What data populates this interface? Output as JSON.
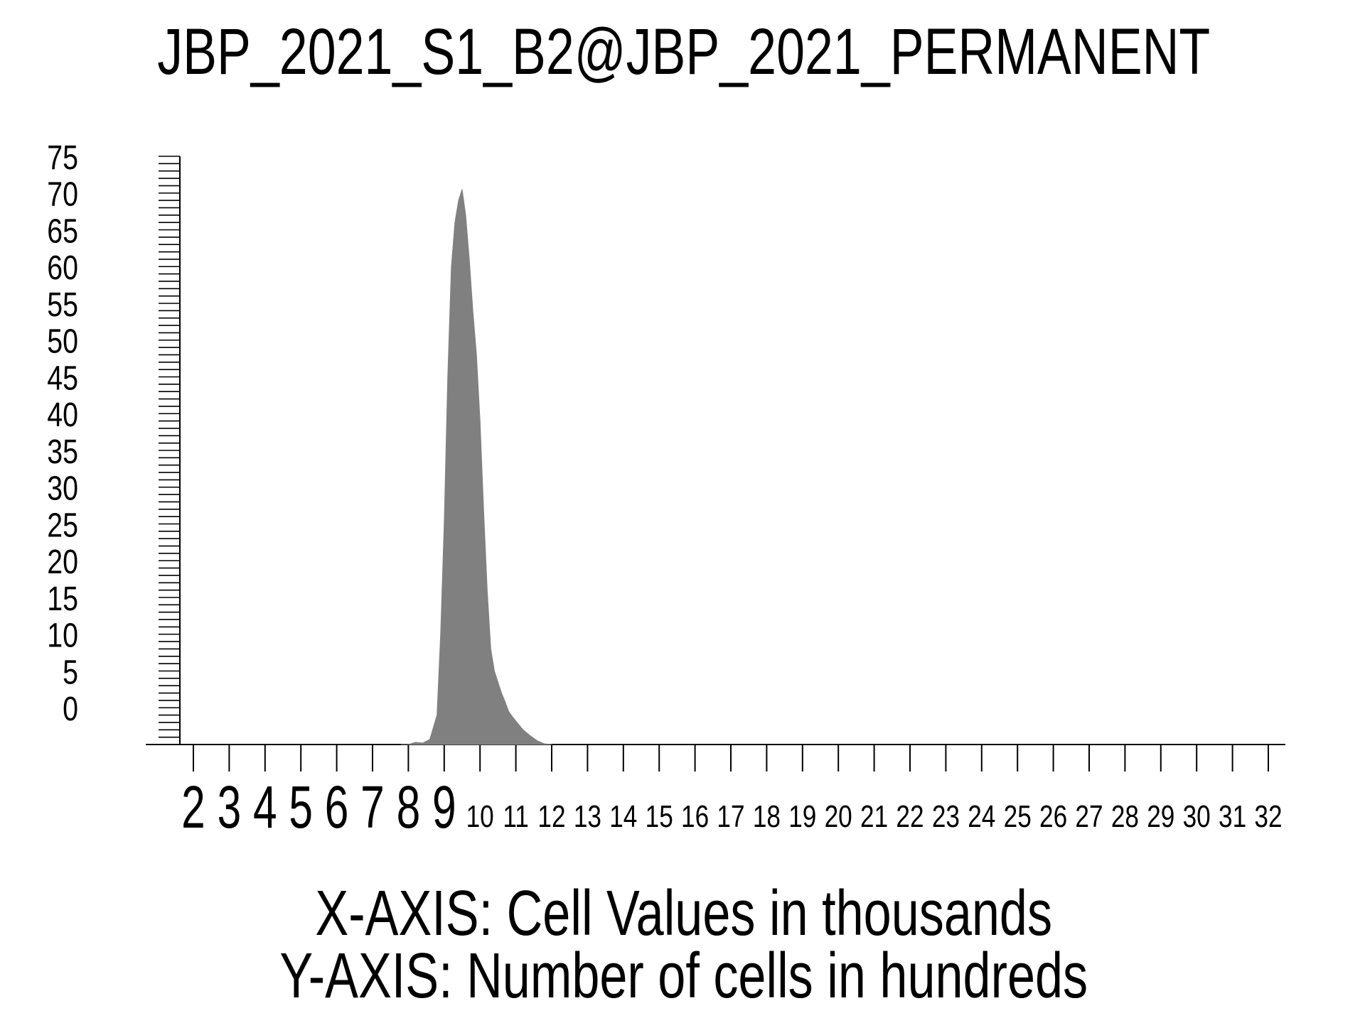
{
  "chart_data": {
    "type": "area",
    "title": "JBP_2021_S1_B2@JBP_2021_PERMANENT",
    "xlabel": "X-AXIS: Cell Values in thousands",
    "ylabel": "Y-AXIS: Number of cells in hundreds",
    "x_ticks": [
      "2",
      "3",
      "4",
      "5",
      "6",
      "7",
      "8",
      "9",
      "10",
      "11",
      "12",
      "13",
      "14",
      "15",
      "16",
      "17",
      "18",
      "19",
      "20",
      "21",
      "22",
      "23",
      "24",
      "25",
      "26",
      "27",
      "28",
      "29",
      "30",
      "31",
      "32"
    ],
    "y_ticks": [
      "0",
      "5",
      "10",
      "15",
      "20",
      "25",
      "30",
      "35",
      "40",
      "45",
      "50",
      "55",
      "60",
      "65",
      "70",
      "75"
    ],
    "xlim": [
      1.5,
      32.5
    ],
    "ylim": [
      -5,
      75
    ],
    "grid": false,
    "series": [
      {
        "color": "#808080",
        "x": [
          7.8,
          8.0,
          8.2,
          8.4,
          8.6,
          8.8,
          8.9,
          9.0,
          9.1,
          9.2,
          9.3,
          9.4,
          9.5,
          9.6,
          9.7,
          9.8,
          9.9,
          10.0,
          10.1,
          10.2,
          10.3,
          10.4,
          10.5,
          10.6,
          10.7,
          10.8,
          10.9,
          11.0,
          11.1,
          11.2,
          11.4,
          11.6,
          11.8,
          12.0
        ],
        "y": [
          -5,
          -5,
          -4.7,
          -4.8,
          -4.3,
          -1,
          10,
          25,
          45,
          60,
          66,
          69,
          70.5,
          67,
          61,
          54,
          48,
          39,
          27,
          16,
          8,
          5,
          3.5,
          2,
          0.8,
          -0.5,
          -1.2,
          -1.8,
          -2.4,
          -3.0,
          -3.8,
          -4.5,
          -4.9,
          -5
        ]
      }
    ]
  }
}
